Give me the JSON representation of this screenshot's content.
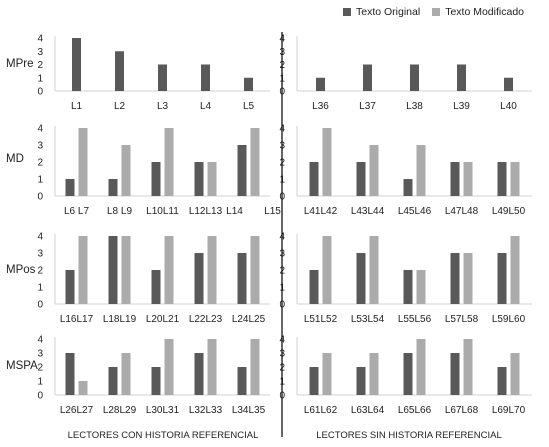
{
  "legend": {
    "original_label": "Texto Original",
    "modified_label": "Texto Modificado"
  },
  "colors": {
    "original": "#595959",
    "modified": "#ababab",
    "axis": "#d0d0d0",
    "divider": "#000000"
  },
  "footer": {
    "left": "LECTORES CON HISTORIA REFERENCIAL",
    "right": "LECTORES SIN HISTORIA REFERENCIAL"
  },
  "row_labels": [
    "MPre",
    "MD",
    "MPos",
    "MSPA"
  ],
  "chart_data": [
    {
      "type": "bar",
      "row": "MPre",
      "side": "con-historia",
      "categories": [
        "L1",
        "L2",
        "L3",
        "L4",
        "L5"
      ],
      "series": [
        {
          "name": "Texto Original",
          "values": [
            4,
            3,
            2,
            2,
            1
          ]
        },
        {
          "name": "Texto Modificado",
          "values": [
            null,
            null,
            null,
            null,
            null
          ]
        }
      ],
      "ylim": [
        0,
        4
      ],
      "yticks": [
        0,
        1,
        2,
        3,
        4
      ]
    },
    {
      "type": "bar",
      "row": "MPre",
      "side": "sin-historia",
      "categories": [
        "L36",
        "L37",
        "L38",
        "L39",
        "L40"
      ],
      "series": [
        {
          "name": "Texto Original",
          "values": [
            1,
            2,
            2,
            2,
            1
          ]
        },
        {
          "name": "Texto Modificado",
          "values": [
            null,
            null,
            null,
            null,
            null
          ]
        }
      ],
      "ylim": [
        0,
        4
      ],
      "yticks": [
        0,
        1,
        2,
        3,
        4
      ]
    },
    {
      "type": "bar",
      "row": "MD",
      "side": "con-historia",
      "categories": [
        "L6 L7",
        "L8 L9",
        "L10L11",
        "L12L13",
        "L14",
        "L15"
      ],
      "series": [
        {
          "name": "Texto Original",
          "values": [
            1,
            1,
            2,
            2,
            3,
            null
          ]
        },
        {
          "name": "Texto Modificado",
          "values": [
            4,
            3,
            4,
            2,
            4,
            null
          ]
        }
      ],
      "ylim": [
        0,
        4
      ],
      "yticks": [
        0,
        1,
        2,
        3,
        4
      ]
    },
    {
      "type": "bar",
      "row": "MD",
      "side": "sin-historia",
      "categories": [
        "L41L42",
        "L43L44",
        "L45L46",
        "L47L48",
        "L49L50"
      ],
      "series": [
        {
          "name": "Texto Original",
          "values": [
            2,
            2,
            1,
            2,
            2
          ]
        },
        {
          "name": "Texto Modificado",
          "values": [
            4,
            3,
            3,
            2,
            2
          ]
        }
      ],
      "ylim": [
        0,
        4
      ],
      "yticks": [
        0,
        1,
        2,
        3,
        4
      ]
    },
    {
      "type": "bar",
      "row": "MPos",
      "side": "con-historia",
      "categories": [
        "L16L17",
        "L18L19",
        "L20L21",
        "L22L23",
        "L24L25"
      ],
      "series": [
        {
          "name": "Texto Original",
          "values": [
            2,
            4,
            2,
            3,
            3
          ]
        },
        {
          "name": "Texto Modificado",
          "values": [
            4,
            4,
            4,
            4,
            4
          ]
        }
      ],
      "ylim": [
        0,
        4
      ],
      "yticks": [
        0,
        1,
        2,
        3,
        4
      ]
    },
    {
      "type": "bar",
      "row": "MPos",
      "side": "sin-historia",
      "categories": [
        "L51L52",
        "L53L54",
        "L55L56",
        "L57L58",
        "L59L60"
      ],
      "series": [
        {
          "name": "Texto Original",
          "values": [
            2,
            3,
            2,
            3,
            3
          ]
        },
        {
          "name": "Texto Modificado",
          "values": [
            4,
            4,
            2,
            3,
            4
          ]
        }
      ],
      "ylim": [
        0,
        4
      ],
      "yticks": [
        0,
        1,
        2,
        3,
        4
      ]
    },
    {
      "type": "bar",
      "row": "MSPA",
      "side": "con-historia",
      "categories": [
        "L26L27",
        "L28L29",
        "L30L31",
        "L32L33",
        "L34L35"
      ],
      "series": [
        {
          "name": "Texto Original",
          "values": [
            3,
            2,
            2,
            3,
            2
          ]
        },
        {
          "name": "Texto Modificado",
          "values": [
            1,
            3,
            4,
            4,
            4
          ]
        }
      ],
      "ylim": [
        0,
        4
      ],
      "yticks": [
        0,
        1,
        2,
        3,
        4
      ]
    },
    {
      "type": "bar",
      "row": "MSPA",
      "side": "sin-historia",
      "categories": [
        "L61L62",
        "L63L64",
        "L65L66",
        "L67L68",
        "L69L70"
      ],
      "series": [
        {
          "name": "Texto Original",
          "values": [
            2,
            2,
            3,
            3,
            2
          ]
        },
        {
          "name": "Texto Modificado",
          "values": [
            3,
            3,
            4,
            4,
            3
          ]
        }
      ],
      "ylim": [
        0,
        4
      ],
      "yticks": [
        0,
        1,
        2,
        3,
        4
      ]
    }
  ]
}
